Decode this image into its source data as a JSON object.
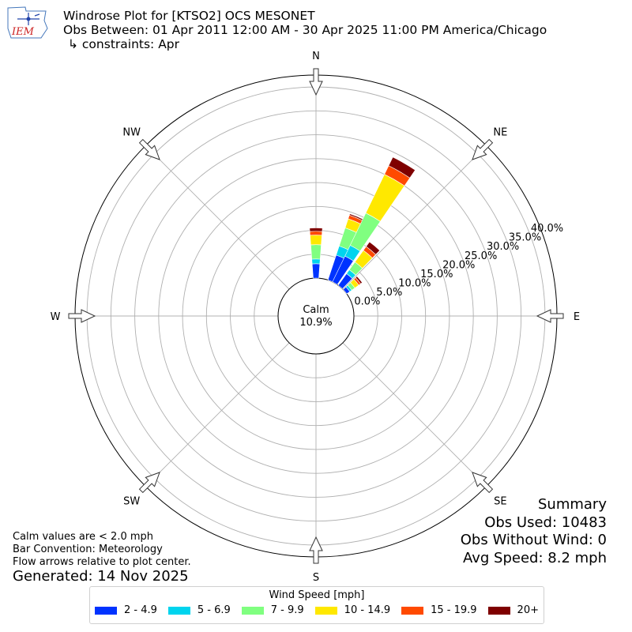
{
  "header": {
    "logo_text": "IEM",
    "title": "Windrose Plot for [KTSO2] OCS MESONET",
    "obs_between": "Obs Between: 01 Apr 2011 12:00 AM - 30 Apr 2025 11:00 PM America/Chicago",
    "constraints": "↳ constraints: Apr"
  },
  "summary": {
    "heading": "Summary",
    "obs_used": "Obs Used: 10483",
    "obs_without_wind": "Obs Without Wind: 0",
    "avg_speed": "Avg Speed: 8.2 mph"
  },
  "notes": {
    "calm": "Calm values are < 2.0 mph",
    "bar_convention": "Bar Convention: Meteorology",
    "flow_arrows": "Flow arrows relative to plot center.",
    "generated": "Generated: 14 Nov 2025"
  },
  "legend": {
    "title": "Wind Speed [mph]",
    "items": [
      {
        "label": "2 - 4.9",
        "color": "#0033ff"
      },
      {
        "label": "5 - 6.9",
        "color": "#00d4ee"
      },
      {
        "label": "7 - 9.9",
        "color": "#80ff80"
      },
      {
        "label": "10 - 14.9",
        "color": "#ffe800"
      },
      {
        "label": "15 - 19.9",
        "color": "#ff4a00"
      },
      {
        "label": "20+",
        "color": "#7f0000"
      }
    ]
  },
  "chart_data": {
    "type": "windrose",
    "calm_label": "Calm",
    "calm_percent": "10.9%",
    "directions": [
      "N",
      "NE",
      "E",
      "SE",
      "S",
      "SW",
      "W",
      "NW"
    ],
    "radial_ticks": [
      "0.0%",
      "5.0%",
      "10.0%",
      "15.0%",
      "20.0%",
      "25.0%",
      "30.0%",
      "35.0%",
      "40.0%"
    ],
    "rmax": 42.5,
    "bars": [
      {
        "direction_deg": 0,
        "values": [
          3.0,
          1.0,
          3.0,
          2.0,
          0.8,
          0.7
        ]
      },
      {
        "direction_deg": 22.5,
        "values": [
          5.5,
          2.0,
          4.0,
          2.0,
          0.8,
          0.3
        ]
      },
      {
        "direction_deg": 30,
        "values": [
          6.0,
          2.5,
          7.5,
          9.0,
          2.0,
          2.0
        ]
      },
      {
        "direction_deg": 40,
        "values": [
          3.0,
          1.0,
          2.0,
          3.0,
          1.0,
          1.2
        ]
      },
      {
        "direction_deg": 50,
        "values": [
          0.8,
          0.5,
          0.8,
          1.0,
          0.5,
          0.4
        ]
      }
    ]
  }
}
